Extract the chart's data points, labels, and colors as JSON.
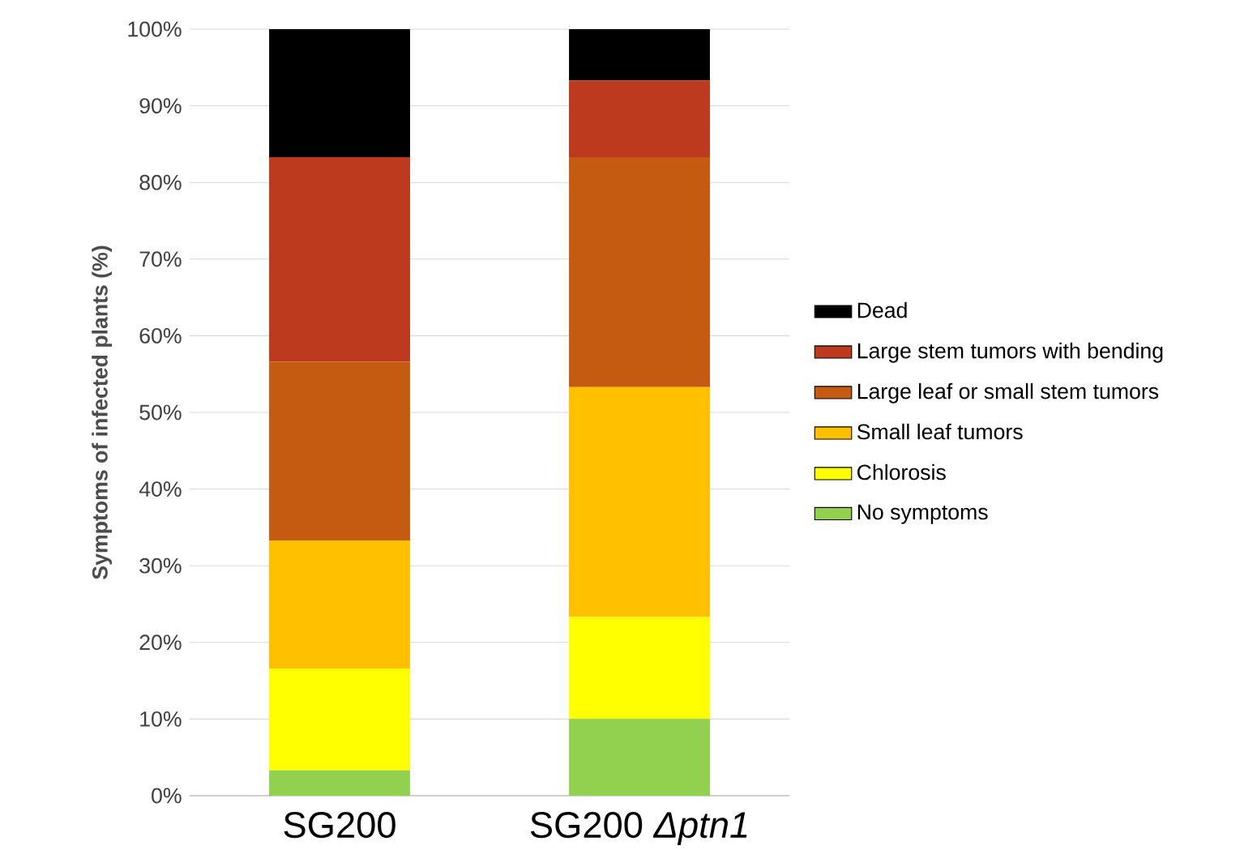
{
  "chart_data": {
    "type": "bar",
    "stacked": true,
    "ylabel": "Symptoms of infected plants  (%)",
    "categories": [
      "SG200",
      "SG200 *Δptn1*"
    ],
    "series": [
      {
        "name": "No symptoms",
        "color": "#92d050",
        "values": [
          3.3,
          10
        ]
      },
      {
        "name": "Chlorosis",
        "color": "#ffff00",
        "values": [
          13.3,
          13.3
        ]
      },
      {
        "name": "Small leaf tumors",
        "color": "#ffc000",
        "values": [
          16.7,
          30
        ]
      },
      {
        "name": "Large leaf or small stem tumors",
        "color": "#c55a11",
        "values": [
          23.3,
          30
        ]
      },
      {
        "name": "Large stem tumors with bending",
        "color": "#be3a1e",
        "values": [
          26.7,
          10
        ]
      },
      {
        "name": "Dead",
        "color": "#000000",
        "values": [
          16.7,
          6.7
        ]
      }
    ],
    "ylim": [
      0,
      100
    ],
    "yticks": [
      {
        "value": 0,
        "label": "0%"
      },
      {
        "value": 10,
        "label": "10%"
      },
      {
        "value": 20,
        "label": "20%"
      },
      {
        "value": 30,
        "label": "30%"
      },
      {
        "value": 40,
        "label": "40%"
      },
      {
        "value": 50,
        "label": "50%"
      },
      {
        "value": 60,
        "label": "60%"
      },
      {
        "value": 70,
        "label": "70%"
      },
      {
        "value": 80,
        "label": "80%"
      },
      {
        "value": 90,
        "label": "90%"
      },
      {
        "value": 100,
        "label": "100%"
      }
    ],
    "grid": "y",
    "legend": "right"
  }
}
